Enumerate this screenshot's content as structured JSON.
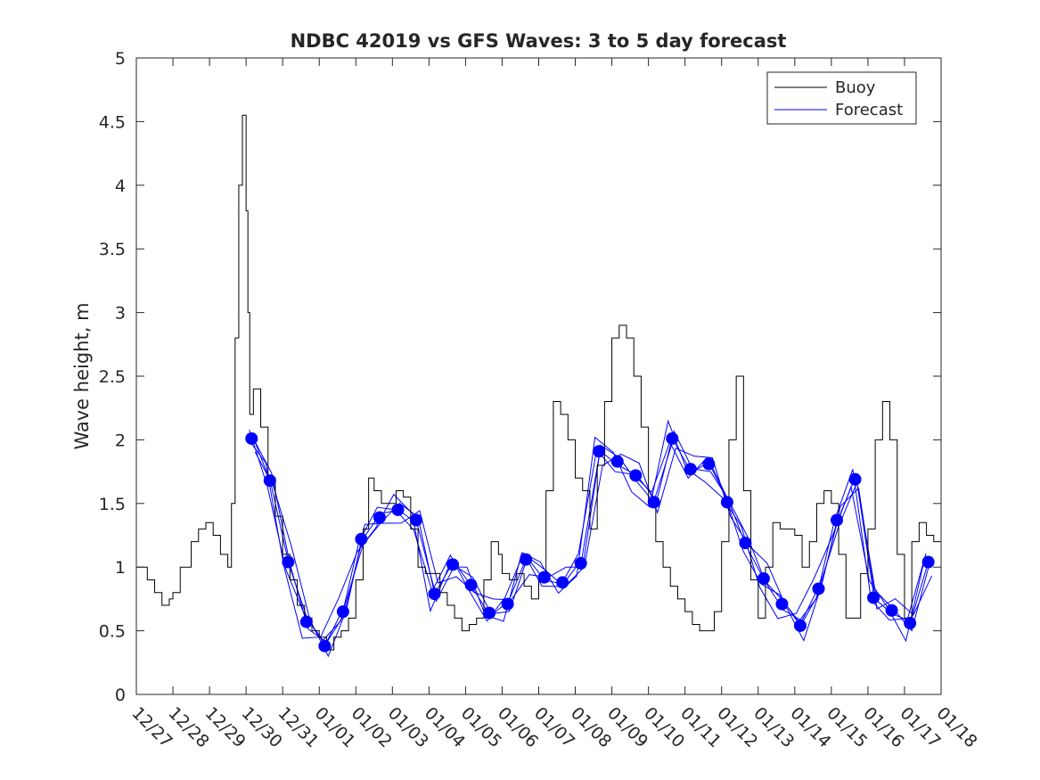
{
  "chart_data": {
    "type": "line",
    "title": "NDBC 42019 vs GFS Waves: 3 to 5 day forecast",
    "xlabel": "",
    "ylabel": "Wave height, m",
    "xlim": [
      0,
      22
    ],
    "ylim": [
      0,
      5
    ],
    "xticks": [
      0,
      1,
      2,
      3,
      4,
      5,
      6,
      7,
      8,
      9,
      10,
      11,
      12,
      13,
      14,
      15,
      16,
      17,
      18,
      19,
      20,
      21,
      22
    ],
    "xtick_labels": [
      "12/27",
      "12/28",
      "12/29",
      "12/30",
      "12/31",
      "01/01",
      "01/02",
      "01/03",
      "01/04",
      "01/05",
      "01/06",
      "01/07",
      "01/08",
      "01/09",
      "01/10",
      "01/11",
      "01/12",
      "01/13",
      "01/14",
      "01/15",
      "01/16",
      "01/17",
      "01/18"
    ],
    "yticks": [
      0,
      0.5,
      1,
      1.5,
      2,
      2.5,
      3,
      3.5,
      4,
      4.5,
      5
    ],
    "ytick_labels": [
      "0",
      "0.5",
      "1",
      "1.5",
      "2",
      "2.5",
      "3",
      "3.5",
      "4",
      "4.5",
      "5"
    ],
    "legend": {
      "location": "top-right",
      "entries": [
        {
          "name": "Buoy",
          "color": "#000000"
        },
        {
          "name": "Forecast",
          "color": "#0000ff"
        }
      ]
    },
    "colors": {
      "buoy": "#000000",
      "forecast": "#0000ff",
      "axis": "#262626",
      "marker": "#0000ff"
    },
    "buoy": {
      "x": [
        0,
        0.3,
        0.5,
        0.7,
        0.9,
        1.0,
        1.2,
        1.5,
        1.7,
        1.9,
        2.1,
        2.3,
        2.5,
        2.6,
        2.7,
        2.8,
        2.9,
        3.0,
        3.05,
        3.1,
        3.2,
        3.4,
        3.6,
        3.8,
        4.0,
        4.2,
        4.4,
        4.6,
        4.8,
        5.0,
        5.2,
        5.4,
        5.6,
        5.8,
        6.0,
        6.2,
        6.35,
        6.5,
        6.7,
        6.9,
        7.1,
        7.3,
        7.5,
        7.7,
        7.9,
        8.1,
        8.3,
        8.5,
        8.7,
        8.9,
        9.1,
        9.3,
        9.5,
        9.7,
        9.9,
        10.0,
        10.2,
        10.4,
        10.6,
        10.8,
        11.0,
        11.2,
        11.4,
        11.6,
        11.8,
        12.0,
        12.2,
        12.4,
        12.6,
        12.8,
        13.0,
        13.2,
        13.4,
        13.6,
        13.8,
        14.0,
        14.2,
        14.4,
        14.6,
        14.8,
        15.0,
        15.2,
        15.4,
        15.6,
        15.8,
        16.0,
        16.2,
        16.4,
        16.6,
        16.8,
        17.0,
        17.2,
        17.4,
        17.6,
        17.8,
        18.0,
        18.2,
        18.4,
        18.6,
        18.8,
        19.0,
        19.2,
        19.4,
        19.6,
        19.8,
        20.0,
        20.2,
        20.4,
        20.6,
        20.8,
        21.0,
        21.2,
        21.4,
        21.6,
        21.8,
        22.0
      ],
      "y": [
        1.0,
        0.9,
        0.8,
        0.7,
        0.75,
        0.8,
        1.0,
        1.2,
        1.3,
        1.35,
        1.25,
        1.1,
        1.0,
        1.5,
        2.8,
        4.0,
        4.55,
        3.8,
        3.0,
        2.2,
        2.4,
        2.1,
        1.7,
        1.4,
        1.1,
        0.9,
        0.7,
        0.6,
        0.5,
        0.45,
        0.35,
        0.45,
        0.5,
        0.6,
        0.9,
        1.3,
        1.7,
        1.6,
        1.5,
        1.5,
        1.6,
        1.55,
        1.3,
        1.0,
        0.95,
        0.95,
        0.8,
        0.7,
        0.6,
        0.5,
        0.55,
        0.6,
        0.9,
        1.2,
        1.1,
        0.95,
        0.9,
        0.95,
        0.85,
        0.75,
        0.9,
        1.6,
        2.3,
        2.2,
        2.0,
        1.7,
        1.6,
        1.3,
        1.8,
        2.3,
        2.8,
        2.9,
        2.8,
        2.5,
        2.1,
        1.5,
        1.2,
        1.0,
        0.85,
        0.75,
        0.65,
        0.55,
        0.5,
        0.5,
        0.65,
        1.2,
        2.0,
        2.5,
        1.6,
        0.9,
        0.6,
        1.0,
        1.35,
        1.3,
        1.3,
        1.25,
        1.0,
        1.2,
        1.5,
        1.6,
        1.5,
        1.1,
        0.6,
        0.6,
        0.95,
        1.3,
        2.0,
        2.3,
        2.0,
        1.1,
        0.6,
        1.2,
        1.35,
        1.25,
        1.2,
        1.3
      ]
    },
    "forecast_dots": {
      "x": [
        3.15,
        3.65,
        4.15,
        4.65,
        5.15,
        5.65,
        6.15,
        6.65,
        7.15,
        7.65,
        8.15,
        8.65,
        9.15,
        9.65,
        10.15,
        10.65,
        11.15,
        11.65,
        12.15,
        12.65,
        13.15,
        13.65,
        14.15,
        14.65,
        15.15,
        15.65,
        16.15,
        16.65,
        17.15,
        17.65,
        18.15,
        18.65,
        19.15,
        19.65,
        20.15,
        20.65,
        21.15,
        21.65
      ],
      "y": [
        2.01,
        1.68,
        1.04,
        0.57,
        0.38,
        0.65,
        1.22,
        1.39,
        1.45,
        1.37,
        0.79,
        1.02,
        0.86,
        0.64,
        0.71,
        1.06,
        0.92,
        0.88,
        1.03,
        1.91,
        1.83,
        1.72,
        1.51,
        2.01,
        1.77,
        1.81,
        1.51,
        1.19,
        0.91,
        0.71,
        0.54,
        0.83,
        1.37,
        1.69,
        0.76,
        0.66,
        0.56,
        1.04
      ]
    }
  }
}
